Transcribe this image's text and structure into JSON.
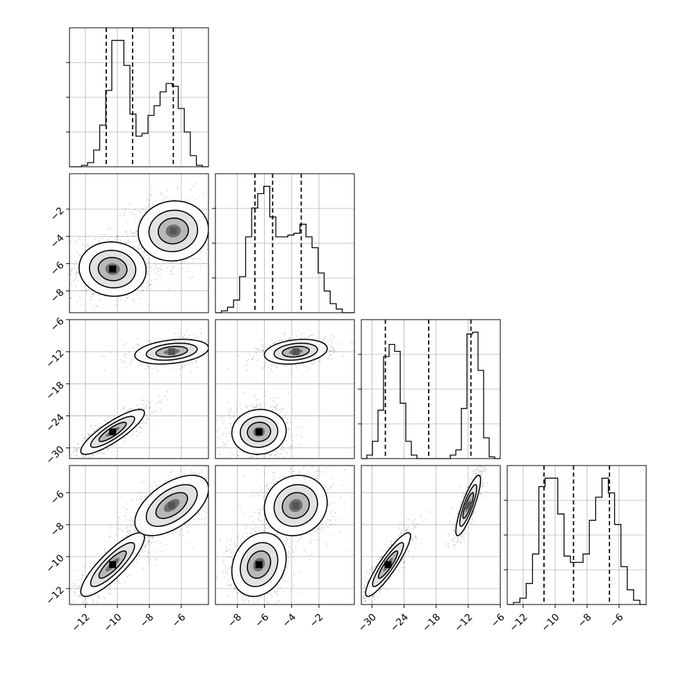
{
  "chart_data": {
    "type": "corner",
    "title": "",
    "grid": true,
    "parameters": [
      {
        "index": 0,
        "range": [
          -13.0,
          -4.3
        ],
        "ticks": [
          -12,
          -10,
          -8,
          -6
        ],
        "tick_labels": [
          "−12",
          "−10",
          "−8",
          "−6"
        ],
        "quantiles": [
          -10.7,
          -9.05,
          -6.5
        ]
      },
      {
        "index": 1,
        "range": [
          -9.6,
          0.6
        ],
        "ticks": [
          -8,
          -6,
          -4,
          -2
        ],
        "tick_labels": [
          "−8",
          "−6",
          "−4",
          "−2"
        ],
        "quantiles": [
          -6.7,
          -5.4,
          -3.3
        ]
      },
      {
        "index": 2,
        "range": [
          -32.0,
          -6.0
        ],
        "ticks": [
          -30,
          -24,
          -18,
          -12,
          -6
        ],
        "tick_labels": [
          "−30",
          "−24",
          "−18",
          "−12",
          "−6"
        ],
        "quantiles": [
          -27.5,
          -19.4,
          -11.5
        ]
      },
      {
        "index": 3,
        "range": [
          -13.0,
          -4.3
        ],
        "ticks": [
          -12,
          -10,
          -8,
          -6
        ],
        "tick_labels": [
          "−12",
          "−10",
          "−8",
          "−6"
        ],
        "quantiles": [
          -10.7,
          -8.85,
          -6.6
        ]
      }
    ],
    "histograms": [
      {
        "param": 0,
        "counts": [
          0,
          0,
          1,
          3,
          12,
          30,
          55,
          91,
          91,
          73,
          38,
          22,
          24,
          37,
          44,
          54,
          60,
          58,
          42,
          25,
          8,
          1,
          0
        ]
      },
      {
        "param": 1,
        "counts": [
          0,
          1,
          3,
          7,
          20,
          42,
          58,
          66,
          70,
          53,
          42,
          42,
          43,
          44,
          49,
          42,
          36,
          22,
          12,
          5,
          2,
          0,
          0
        ]
      },
      {
        "param": 2,
        "counts": [
          0,
          2,
          10,
          28,
          59,
          66,
          62,
          32,
          10,
          2,
          0,
          0,
          0,
          0,
          0,
          0,
          2,
          5,
          29,
          72,
          73,
          51,
          12,
          1,
          0
        ]
      },
      {
        "param": 3,
        "counts": [
          0,
          1,
          3,
          10,
          24,
          56,
          60,
          60,
          43,
          23,
          20,
          20,
          24,
          40,
          51,
          60,
          53,
          38,
          18,
          7,
          2,
          0
        ]
      }
    ],
    "pairs": [
      {
        "x": 0,
        "y": 1,
        "modes": [
          {
            "mean": [
              -10.3,
              -6.4
            ],
            "sd": [
              1.0,
              0.95
            ],
            "rho": -0.05,
            "weight": 0.55
          },
          {
            "mean": [
              -6.5,
              -3.6
            ],
            "sd": [
              1.05,
              1.05
            ],
            "rho": 0.05,
            "weight": 0.45
          }
        ]
      },
      {
        "x": 0,
        "y": 2,
        "modes": [
          {
            "mean": [
              -10.3,
              -27.0
            ],
            "sd": [
              0.95,
              2.0
            ],
            "rho": 0.85,
            "weight": 0.55
          },
          {
            "mean": [
              -6.6,
              -12.0
            ],
            "sd": [
              1.1,
              1.1
            ],
            "rho": 0.3,
            "weight": 0.45
          }
        ]
      },
      {
        "x": 1,
        "y": 2,
        "modes": [
          {
            "mean": [
              -6.4,
              -27.0
            ],
            "sd": [
              0.95,
              2.0
            ],
            "rho": 0.05,
            "weight": 0.55
          },
          {
            "mean": [
              -3.7,
              -12.0
            ],
            "sd": [
              1.1,
              1.1
            ],
            "rho": 0.25,
            "weight": 0.45
          }
        ]
      },
      {
        "x": 0,
        "y": 3,
        "modes": [
          {
            "mean": [
              -10.3,
              -10.5
            ],
            "sd": [
              0.95,
              0.95
            ],
            "rho": 0.85,
            "weight": 0.55
          },
          {
            "mean": [
              -6.6,
              -6.8
            ],
            "sd": [
              1.1,
              0.9
            ],
            "rho": 0.55,
            "weight": 0.45
          }
        ]
      },
      {
        "x": 1,
        "y": 3,
        "modes": [
          {
            "mean": [
              -6.4,
              -10.5
            ],
            "sd": [
              0.95,
              0.95
            ],
            "rho": 0.2,
            "weight": 0.55
          },
          {
            "mean": [
              -3.7,
              -6.8
            ],
            "sd": [
              1.1,
              0.9
            ],
            "rho": 0.1,
            "weight": 0.45
          }
        ]
      },
      {
        "x": 2,
        "y": 3,
        "modes": [
          {
            "mean": [
              -27.0,
              -10.5
            ],
            "sd": [
              2.0,
              0.95
            ],
            "rho": 0.9,
            "weight": 0.55
          },
          {
            "mean": [
              -12.0,
              -6.8
            ],
            "sd": [
              1.1,
              0.9
            ],
            "rho": 0.85,
            "weight": 0.45
          }
        ]
      }
    ]
  }
}
